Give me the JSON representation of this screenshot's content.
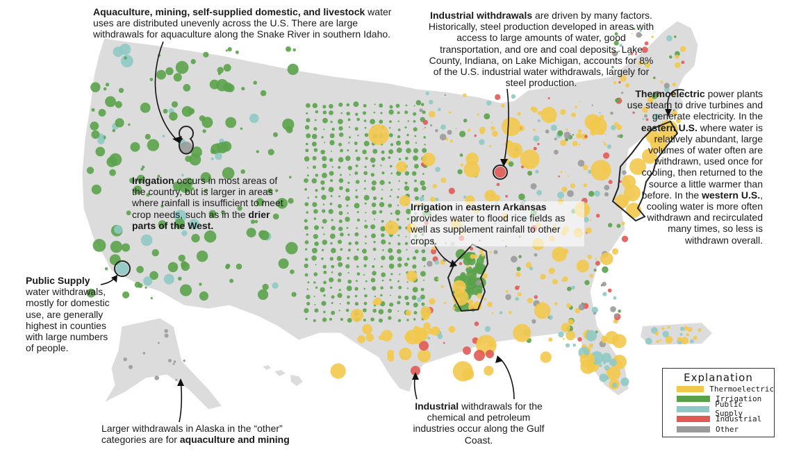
{
  "annotations": {
    "aquaculture": {
      "title": "Aquaculture, mining, self-supplied domestic, and livestock",
      "body": " water uses are distributed unevenly across the U.S. There are large withdrawals for aquaculture along the Snake River in southern Idaho."
    },
    "industrial_withdrawals": {
      "title": "Industrial withdrawals",
      "body": " are driven by many factors. Historically, steel production developed in areas with access to large amounts of water, good transportation, and ore and coal deposits. Lake County, Indiana, on Lake Michigan, accounts for 8% of the U.S. industrial water withdrawals, largely for steel production."
    },
    "thermoelectric": {
      "title": "Thermoelectric",
      "body1": " power plants use steam to drive turbines and generate electricity. In the ",
      "east": "eastern U.S.",
      "body2": " where water is relatively abundant, large volumes of water often are withdrawn, used once for cooling, then returned to the source a little warmer than before. In the ",
      "west": "western U.S.",
      "body3": ", cooling water is more often withdrawn and recirculated many times, so less is withdrawn overall."
    },
    "irrigation_west": {
      "title": "Irrigation",
      "body": " occurs in most areas of the country, but is larger in areas where rainfall is insufficient to meet crop needs, such as in the ",
      "emph": "drier parts of the West."
    },
    "irrigation_arkansas": {
      "title": "Irrigation",
      "mid": " in ",
      "emph": "eastern Arkansas",
      "body": " provides water to flood rice fields as well as supplement rainfall to other crops."
    },
    "public_supply": {
      "title": "Public Supply",
      "body": " water withdrawals, mostly for domestic use, are generally highest in counties with large numbers of people."
    },
    "gulf_industrial": {
      "title": "Industrial",
      "body": " withdrawals for the chemical and petroleum industries occur along the Gulf Coast."
    },
    "alaska": {
      "body": "Larger withdrawals in Alaska in the “other” categories are for ",
      "emph": "aquaculture and mining"
    }
  },
  "legend": {
    "title": "Explanation",
    "items": [
      {
        "label": "Thermoelectric",
        "color": "#f2c84b"
      },
      {
        "label": "Irrigation",
        "color": "#5aa24a"
      },
      {
        "label": "Public Supply",
        "color": "#8ec9c4"
      },
      {
        "label": "Industrial",
        "color": "#e05a55"
      },
      {
        "label": "Other",
        "color": "#9a9a9a"
      }
    ]
  },
  "colors": {
    "land": "#dcdcdc",
    "thermoelectric": "#f2c84b",
    "irrigation": "#5aa24a",
    "public_supply": "#8ec9c4",
    "industrial": "#e05a55",
    "other": "#9a9a9a"
  }
}
